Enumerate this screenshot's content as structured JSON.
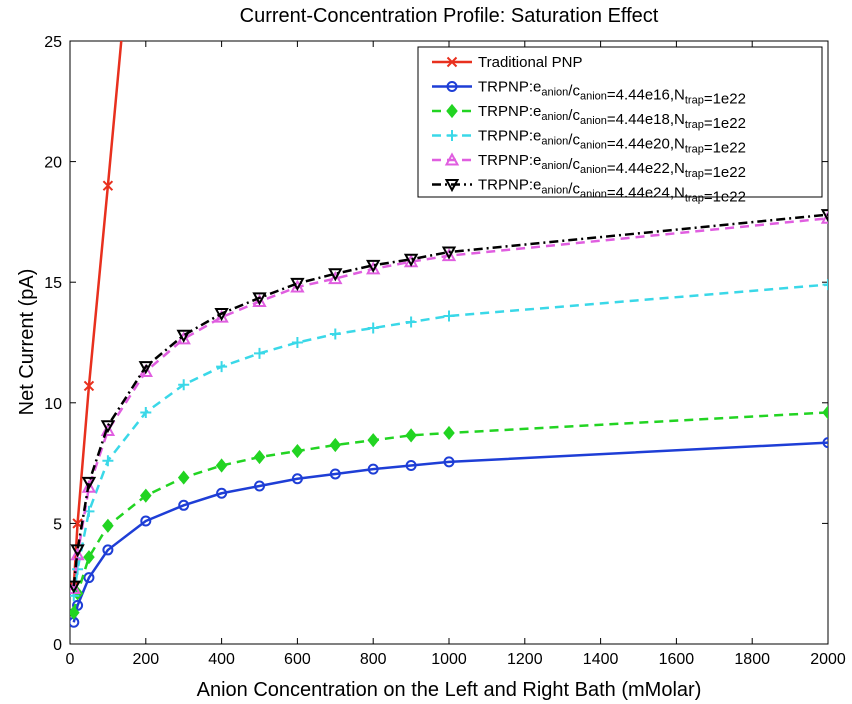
{
  "chart_data": {
    "type": "line",
    "title": "Current-Concentration Profile: Saturation Effect",
    "xlabel": "Anion Concentration on the Left and Right Bath (mMolar)",
    "ylabel": "Net Current (pA)",
    "xlim": [
      0,
      2000
    ],
    "ylim": [
      0,
      25
    ],
    "xticks": [
      0,
      200,
      400,
      600,
      800,
      1000,
      1200,
      1400,
      1600,
      1800,
      2000
    ],
    "yticks": [
      0,
      5,
      10,
      15,
      20,
      25
    ],
    "grid": false,
    "legend_position": "top-right",
    "series": [
      {
        "legend": {
          "prefix": "Traditional PNP"
        },
        "color": "#e8301e",
        "dash": "solid",
        "marker": "x",
        "x": [
          10,
          20,
          50,
          100,
          200
        ],
        "y": [
          2.4,
          5.0,
          10.7,
          19.0,
          36.0
        ]
      },
      {
        "legend": {
          "prefix": "TRPNP:e",
          "sub1": "anion",
          "mid1": "/c",
          "sub2": "anion",
          "mid2": "=4.44e16,N",
          "sub3": "trap",
          "suffix": "=1e22"
        },
        "color": "#1e3ed6",
        "dash": "solid",
        "marker": "circle",
        "x": [
          10,
          20,
          50,
          100,
          200,
          300,
          400,
          500,
          600,
          700,
          800,
          900,
          1000,
          2000
        ],
        "y": [
          0.9,
          1.6,
          2.75,
          3.9,
          5.1,
          5.75,
          6.25,
          6.55,
          6.85,
          7.05,
          7.25,
          7.4,
          7.55,
          8.35
        ]
      },
      {
        "legend": {
          "prefix": "TRPNP:e",
          "sub1": "anion",
          "mid1": "/c",
          "sub2": "anion",
          "mid2": "=4.44e18,N",
          "sub3": "trap",
          "suffix": "=1e22"
        },
        "color": "#22d422",
        "dash": "dashed",
        "marker": "diamond",
        "x": [
          10,
          20,
          50,
          100,
          200,
          300,
          400,
          500,
          600,
          700,
          800,
          900,
          1000,
          2000
        ],
        "y": [
          1.3,
          2.1,
          3.6,
          4.9,
          6.15,
          6.9,
          7.4,
          7.75,
          8.0,
          8.25,
          8.45,
          8.65,
          8.75,
          9.6
        ]
      },
      {
        "legend": {
          "prefix": "TRPNP:e",
          "sub1": "anion",
          "mid1": "/c",
          "sub2": "anion",
          "mid2": "=4.44e20,N",
          "sub3": "trap",
          "suffix": "=1e22"
        },
        "color": "#3ad8e8",
        "dash": "dashed",
        "marker": "plus",
        "x": [
          10,
          20,
          50,
          100,
          200,
          300,
          400,
          500,
          600,
          700,
          800,
          900,
          1000,
          2000
        ],
        "y": [
          2.0,
          3.1,
          5.5,
          7.6,
          9.6,
          10.75,
          11.5,
          12.05,
          12.5,
          12.85,
          13.1,
          13.35,
          13.6,
          14.9
        ]
      },
      {
        "legend": {
          "prefix": "TRPNP:e",
          "sub1": "anion",
          "mid1": "/c",
          "sub2": "anion",
          "mid2": "=4.44e22,N",
          "sub3": "trap",
          "suffix": "=1e22"
        },
        "color": "#e05ee0",
        "dash": "dashed",
        "marker": "triangle-up",
        "x": [
          10,
          20,
          50,
          100,
          200,
          300,
          400,
          500,
          600,
          700,
          800,
          900,
          1000,
          2000
        ],
        "y": [
          2.3,
          3.7,
          6.5,
          8.85,
          11.3,
          12.65,
          13.55,
          14.2,
          14.8,
          15.15,
          15.55,
          15.85,
          16.1,
          17.65
        ]
      },
      {
        "legend": {
          "prefix": "TRPNP:e",
          "sub1": "anion",
          "mid1": "/c",
          "sub2": "anion",
          "mid2": "=4.44e24,N",
          "sub3": "trap",
          "suffix": "=1e22"
        },
        "color": "#000000",
        "dash": "dashdot",
        "marker": "triangle-down",
        "x": [
          10,
          20,
          50,
          100,
          200,
          300,
          400,
          500,
          600,
          700,
          800,
          900,
          1000,
          2000
        ],
        "y": [
          2.4,
          3.9,
          6.7,
          9.05,
          11.5,
          12.8,
          13.7,
          14.35,
          14.95,
          15.35,
          15.7,
          15.95,
          16.25,
          17.8
        ]
      }
    ]
  }
}
